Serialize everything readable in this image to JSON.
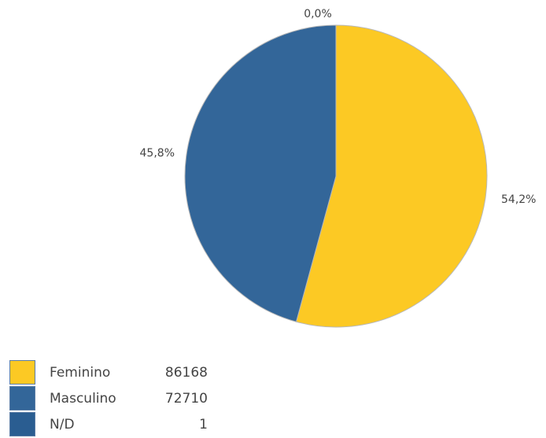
{
  "chart_data": {
    "type": "pie",
    "categories": [
      "Feminino",
      "Masculino",
      "N/D"
    ],
    "values": [
      86168,
      72710,
      1
    ],
    "percent_labels": [
      "54,2%",
      "45,8%",
      "0,0%"
    ],
    "colors": [
      "#fcc924",
      "#336699",
      "#2a5d91"
    ],
    "slice_stroke": "#b8b8b8",
    "legend_position": "bottom-left"
  }
}
